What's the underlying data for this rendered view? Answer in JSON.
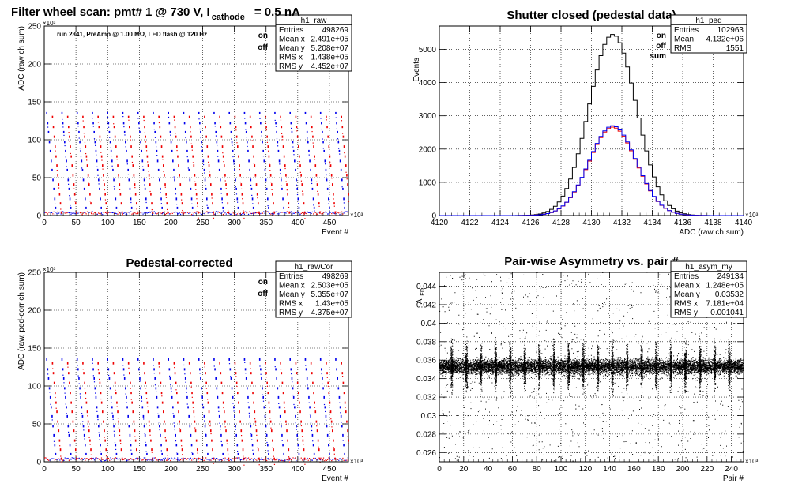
{
  "window": {
    "title": "ROOT canvas - filter wheel scan"
  },
  "colors": {
    "on": "#0000ee",
    "off": "#ee0000",
    "sum": "#000000",
    "grid": "#000000",
    "frame": "#000000"
  },
  "chart_data": [
    {
      "id": "raw",
      "type": "scatter",
      "title": "Filter wheel scan: pmt#   1 @   730 V, I",
      "title_sub": "cathode",
      "title_tail": "= 0.5 nA",
      "annotation": "run 2341, PreAmp @ 1.00 MΩ, LED flash @  120 Hz",
      "xlabel": "Event #",
      "ylabel": "ADC (raw ch sum)",
      "xscale_label": "×10³",
      "yscale_label": "×10³",
      "xlim": [
        0,
        480
      ],
      "ylim": [
        0,
        250
      ],
      "xticks": [
        0,
        50,
        100,
        150,
        200,
        250,
        300,
        350,
        400,
        450
      ],
      "yticks": [
        0,
        50,
        100,
        150,
        200,
        250
      ],
      "legend": [
        "on",
        "off"
      ],
      "legend_placement": "top-right",
      "grid": true,
      "stats": {
        "name": "h1_raw",
        "rows": [
          [
            "Entries",
            "498269"
          ],
          [
            "Mean x",
            "2.491e+05"
          ],
          [
            "Mean y",
            "5.208e+07"
          ],
          [
            "RMS x",
            "1.438e+05"
          ],
          [
            "RMS y",
            "4.452e+07"
          ]
        ]
      },
      "levels_on": [
        135,
        122,
        110,
        97,
        85,
        72,
        60,
        47,
        35,
        22,
        10
      ],
      "levels_off": [
        130,
        117,
        104,
        91,
        78,
        66,
        53,
        41,
        28,
        16,
        4
      ],
      "step_period": 24
    },
    {
      "id": "ped",
      "type": "line",
      "title": "Shutter closed (pedestal data)",
      "xlabel": "ADC (raw ch sum)",
      "ylabel": "Events",
      "xscale_label": "×10³",
      "xlim": [
        4120,
        4140
      ],
      "ylim": [
        0,
        5700
      ],
      "xticks": [
        4120,
        4122,
        4124,
        4126,
        4128,
        4130,
        4132,
        4134,
        4136,
        4138,
        4140
      ],
      "yticks": [
        0,
        1000,
        2000,
        3000,
        4000,
        5000
      ],
      "legend": [
        "on",
        "off",
        "sum"
      ],
      "legend_placement": "top-right",
      "grid": true,
      "stats": {
        "name": "h1_ped",
        "rows": [
          [
            "Entries",
            "102963"
          ],
          [
            "Mean",
            "4.132e+06"
          ],
          [
            "RMS",
            "1551"
          ]
        ]
      },
      "peak_sum": 5450,
      "peak_on": 2700,
      "peak_off": 2660,
      "mean": 4131.4,
      "sigma": 1.55
    },
    {
      "id": "rawCor",
      "type": "scatter",
      "title": "Pedestal-corrected",
      "xlabel": "Event #",
      "ylabel": "ADC (raw, ped-corr ch sum)",
      "xscale_label": "×10³",
      "yscale_label": "×10³",
      "xlim": [
        0,
        480
      ],
      "ylim": [
        0,
        250
      ],
      "xticks": [
        0,
        50,
        100,
        150,
        200,
        250,
        300,
        350,
        400,
        450
      ],
      "yticks": [
        0,
        50,
        100,
        150,
        200,
        250
      ],
      "legend": [
        "on",
        "off"
      ],
      "legend_placement": "top-right",
      "grid": true,
      "stats": {
        "name": "h1_rawCor",
        "rows": [
          [
            "Entries",
            "498269"
          ],
          [
            "Mean x",
            "2.503e+05"
          ],
          [
            "Mean y",
            "5.355e+07"
          ],
          [
            "RMS x",
            "1.43e+05"
          ],
          [
            "RMS y",
            "4.375e+07"
          ]
        ]
      },
      "levels_on": [
        135,
        122,
        110,
        97,
        85,
        72,
        60,
        47,
        35,
        22,
        10
      ],
      "levels_off": [
        130,
        117,
        104,
        91,
        78,
        66,
        53,
        41,
        28,
        16,
        4
      ],
      "step_period": 24
    },
    {
      "id": "asym",
      "type": "scatter",
      "title": "Pair-wise Asymmetry vs. pair #",
      "xlabel": "Pair #",
      "ylabel": "A",
      "ylabel_sub": "LED",
      "xscale_label": "×10³",
      "xlim": [
        0,
        250
      ],
      "ylim": [
        0.025,
        0.0455
      ],
      "xticks": [
        0,
        20,
        40,
        60,
        80,
        100,
        120,
        140,
        160,
        180,
        200,
        220,
        240
      ],
      "yticks": [
        0.026,
        0.028,
        0.03,
        0.032,
        0.034,
        0.036,
        0.038,
        0.04,
        0.042,
        0.044
      ],
      "ytick_labels": [
        "0.026",
        "0.028",
        "0.03",
        "0.032",
        "0.034",
        "0.036",
        "0.038",
        "0.04",
        "0.042",
        "0.044"
      ],
      "grid": true,
      "stats": {
        "name": "h1_asym_my",
        "rows": [
          [
            "Entries",
            "249134"
          ],
          [
            "Mean x",
            "1.248e+05"
          ],
          [
            "Mean y",
            "0.03532"
          ],
          [
            "RMS x",
            "7.181e+04"
          ],
          [
            "RMS y",
            "0.001041"
          ]
        ]
      },
      "band_center": 0.0353,
      "band_halfwidth": 0.0012,
      "spike_period": 12
    }
  ]
}
